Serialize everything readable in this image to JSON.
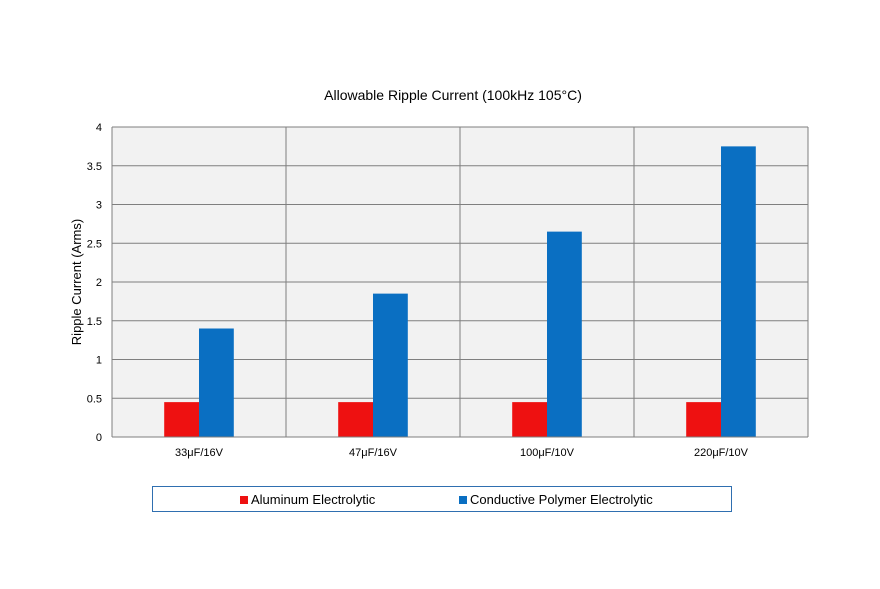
{
  "colors": {
    "aluminum": "#ee1111",
    "polymer": "#0a6fc2",
    "plot_bg": "#f2f2f2",
    "grid": "#7f7f7f"
  },
  "chart_data": {
    "type": "bar",
    "title": "Allowable Ripple Current (100kHz 105°C)",
    "xlabel": "",
    "ylabel": "Ripple Current (Arms)",
    "categories": [
      "33μF/16V",
      "47μF/16V",
      "100μF/10V",
      "220μF/10V"
    ],
    "series": [
      {
        "name": "Aluminum Electrolytic",
        "values": [
          0.45,
          0.45,
          0.45,
          0.45
        ]
      },
      {
        "name": "Conductive Polymer Electrolytic",
        "values": [
          1.4,
          1.85,
          2.65,
          3.75
        ]
      }
    ],
    "ylim": [
      0,
      4
    ],
    "yticks": [
      "0",
      "0.5",
      "1",
      "1.5",
      "2",
      "2.5",
      "3",
      "3.5",
      "4"
    ],
    "grid": true,
    "legend_position": "bottom"
  }
}
